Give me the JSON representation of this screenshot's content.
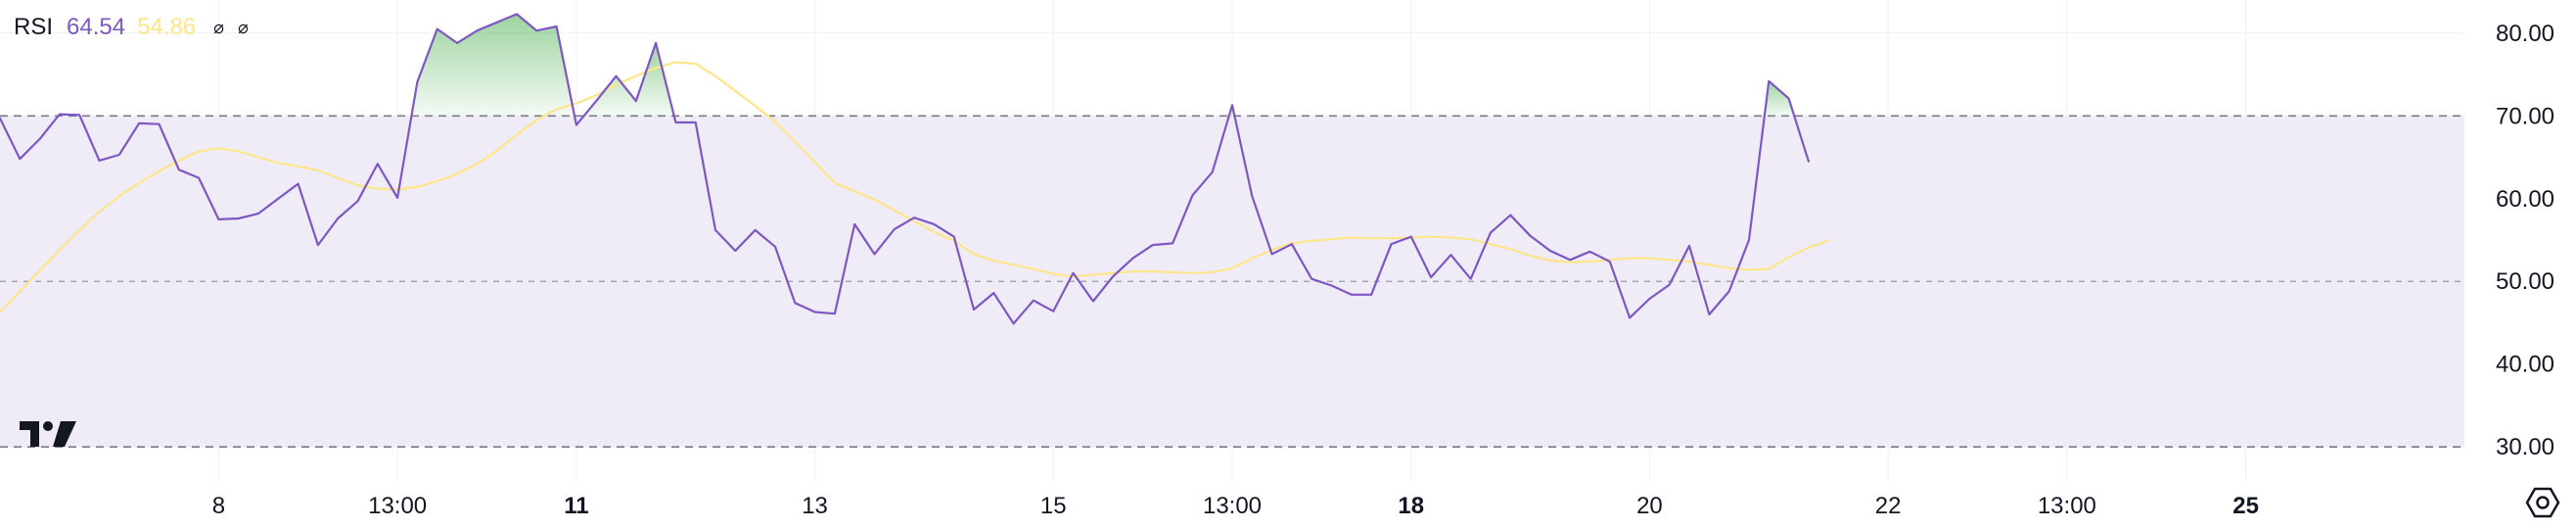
{
  "legend": {
    "indicator": "RSI",
    "rsi_value": "64.54",
    "ma_value": "54.86",
    "extra_icons": [
      "null-value-icon",
      "null-value-icon"
    ]
  },
  "colors": {
    "rsi_line": "#7e57c2",
    "ma_line": "#fde68a",
    "band_fill": "#efecf7",
    "overbought_fill": "#4caf50",
    "grid": "#eef0f3",
    "dashed": "#787b86",
    "axis_text": "#131722"
  },
  "chart_data": {
    "type": "line",
    "title": "RSI",
    "y_axis_ticks": [
      "80.00",
      "70.00",
      "60.00",
      "50.00",
      "40.00",
      "30.00"
    ],
    "x_axis_labels": [
      {
        "text": "8",
        "bold": false,
        "t": 11
      },
      {
        "text": "13:00",
        "bold": false,
        "t": 20
      },
      {
        "text": "11",
        "bold": true,
        "t": 29
      },
      {
        "text": "13",
        "bold": false,
        "t": 41
      },
      {
        "text": "15",
        "bold": false,
        "t": 53
      },
      {
        "text": "13:00",
        "bold": false,
        "t": 62
      },
      {
        "text": "18",
        "bold": true,
        "t": 71
      },
      {
        "text": "20",
        "bold": false,
        "t": 83
      },
      {
        "text": "22",
        "bold": false,
        "t": 95
      },
      {
        "text": "13:00",
        "bold": false,
        "t": 104
      },
      {
        "text": "25",
        "bold": true,
        "t": 113
      }
    ],
    "ylim": [
      26,
      84
    ],
    "t_range": [
      0,
      124
    ],
    "levels": {
      "upper": 70,
      "middle": 50,
      "lower": 30
    },
    "grid": true,
    "series": [
      {
        "name": "RSI",
        "values": [
          69.7,
          64.8,
          67.2,
          70.2,
          70.1,
          64.6,
          65.3,
          69.1,
          69.0,
          63.5,
          62.5,
          57.5,
          57.6,
          58.2,
          60.0,
          61.8,
          54.4,
          57.6,
          59.7,
          64.2,
          60.1,
          74.1,
          80.5,
          78.8,
          80.3,
          81.3,
          82.3,
          80.3,
          80.8,
          68.9,
          71.8,
          74.8,
          71.8,
          78.8,
          69.2,
          69.2,
          56.2,
          53.7,
          56.2,
          54.2,
          47.4,
          46.3,
          46.1,
          56.9,
          53.3,
          56.3,
          57.7,
          56.9,
          55.4,
          46.6,
          48.6,
          44.9,
          47.7,
          46.4,
          51.0,
          47.6,
          50.6,
          52.8,
          54.4,
          54.6,
          60.4,
          63.2,
          71.3,
          60.3,
          53.3,
          54.5,
          50.3,
          49.5,
          48.4,
          48.4,
          54.5,
          55.4,
          50.5,
          53.2,
          50.3,
          55.9,
          58.0,
          55.5,
          53.7,
          52.6,
          53.6,
          52.4,
          45.6,
          47.9,
          49.6,
          54.3,
          46.0,
          48.8,
          55.0,
          74.2,
          72.1,
          64.5
        ]
      },
      {
        "name": "MA",
        "values": [
          46.3,
          48.8,
          51.3,
          53.8,
          56.2,
          58.4,
          60.3,
          61.9,
          63.3,
          64.6,
          65.7,
          66.1,
          65.7,
          65.0,
          64.3,
          63.9,
          63.4,
          62.5,
          61.6,
          61.2,
          61.1,
          61.4,
          62.1,
          63.0,
          64.2,
          65.8,
          67.7,
          69.5,
          70.8,
          71.5,
          72.5,
          73.8,
          74.8,
          75.8,
          76.5,
          76.3,
          74.8,
          73.0,
          71.2,
          69.3,
          66.9,
          64.4,
          61.9,
          60.9,
          59.9,
          58.6,
          57.3,
          56.0,
          54.9,
          53.3,
          52.5,
          52.0,
          51.5,
          50.9,
          50.6,
          50.8,
          51.0,
          51.2,
          51.2,
          51.1,
          51.0,
          51.1,
          51.6,
          52.8,
          53.8,
          54.6,
          54.9,
          55.1,
          55.3,
          55.2,
          55.2,
          55.3,
          55.4,
          55.3,
          55.1,
          54.5,
          53.9,
          53.1,
          52.5,
          52.3,
          52.4,
          52.6,
          52.8,
          52.8,
          52.6,
          52.4,
          52.0,
          51.6,
          51.4,
          51.5,
          52.9,
          54.1,
          54.9
        ]
      }
    ]
  }
}
